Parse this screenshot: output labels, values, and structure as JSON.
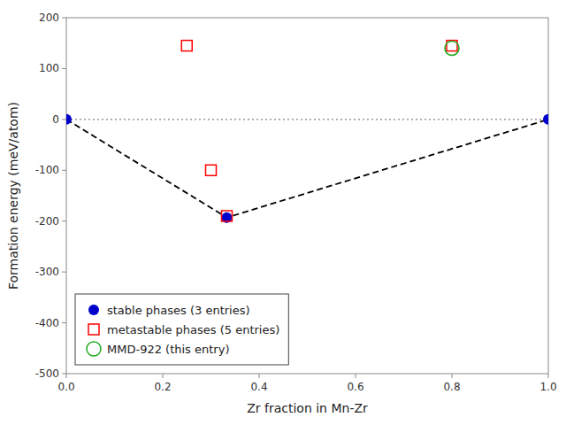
{
  "chart_data": {
    "type": "scatter",
    "xlabel": "Zr fraction in Mn-Zr",
    "ylabel": "Formation energy (meV/atom)",
    "xlim": [
      0.0,
      1.0
    ],
    "ylim": [
      -500,
      200
    ],
    "xticks": [
      {
        "value": 0.0,
        "label": "0.0"
      },
      0.2,
      0.4,
      0.6,
      0.8,
      {
        "value": 1.0,
        "label": "1.0"
      }
    ],
    "yticks": [
      -500,
      -400,
      -300,
      -200,
      -100,
      0,
      100,
      200
    ],
    "grid": false,
    "legend": "lower left",
    "series": [
      {
        "type": "hline",
        "color": "gray",
        "line_style": "dotted",
        "values": [
          0.0
        ]
      },
      {
        "type": "line",
        "color": "black",
        "line_style": "dashed",
        "x": [
          0.0,
          0.333,
          1.0
        ],
        "values": [
          0.0,
          -193.0,
          0.0
        ]
      },
      {
        "type": "scatter",
        "name": "stable phases (3 entries)",
        "color": "#0000cc",
        "marker": "circle",
        "x": [
          0.0,
          0.333,
          1.0
        ],
        "values": [
          0.0,
          -193.0,
          0.0
        ]
      },
      {
        "type": "scatter",
        "name": "metastable phases (5 entries)",
        "color": "red",
        "marker": "square-open",
        "x": [
          0.25,
          0.3,
          0.333,
          0.8
        ],
        "values": [
          145.0,
          -100.0,
          -190.0,
          145.0
        ]
      },
      {
        "type": "scatter",
        "name": "MMD-922 (this entry)",
        "color": "#22aa22",
        "marker": "circle-open",
        "x": [
          0.8
        ],
        "values": [
          140.0
        ]
      }
    ]
  }
}
